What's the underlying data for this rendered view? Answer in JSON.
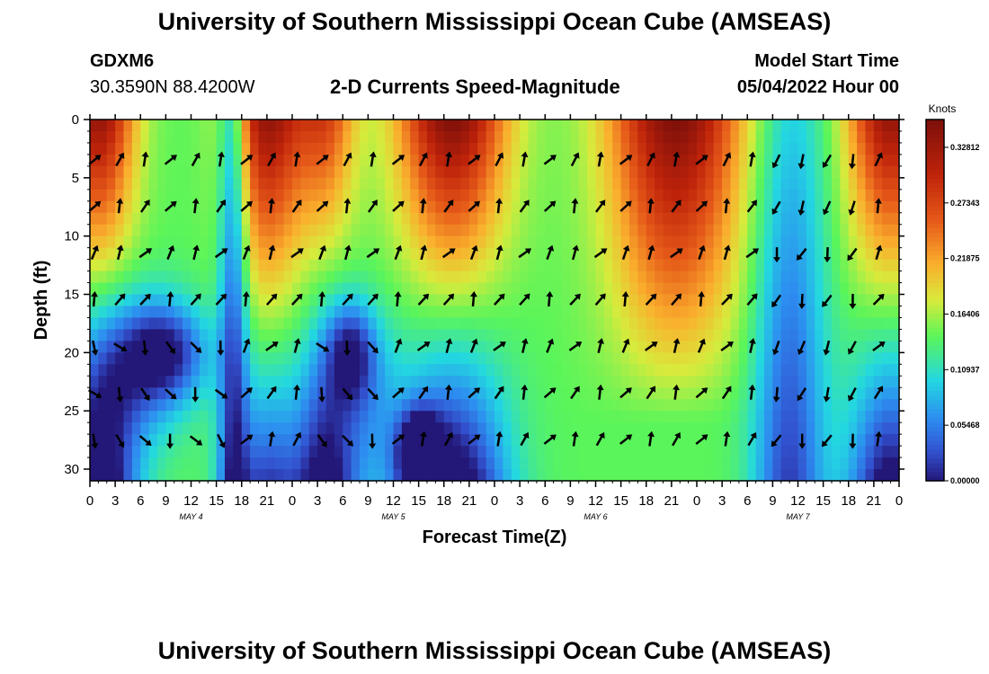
{
  "title": "University of Southern Mississippi Ocean Cube (AMSEAS)",
  "station": {
    "id": "GDXM6",
    "coords": "30.3590N  88.4200W"
  },
  "subtitle": "2-D Currents Speed-Magnitude",
  "model_start": {
    "label": "Model Start Time",
    "value": "05/04/2022 Hour 00"
  },
  "footer_title": "University of Southern Mississippi Ocean Cube (AMSEAS)",
  "chart_data": {
    "type": "heatmap",
    "title": "2-D Currents Speed-Magnitude",
    "xlabel": "Forecast Time(Z)",
    "ylabel": "Depth (ft)",
    "x_range_hours": [
      0,
      96
    ],
    "y_range_ft": [
      0,
      31
    ],
    "x_ticks": [
      0,
      3,
      6,
      9,
      12,
      15,
      18,
      21,
      24,
      27,
      30,
      33,
      36,
      39,
      42,
      45,
      48,
      51,
      54,
      57,
      60,
      63,
      66,
      69,
      72,
      75,
      78,
      81,
      84,
      87,
      90,
      93,
      96
    ],
    "x_tick_labels": [
      "0",
      "3",
      "6",
      "9",
      "12",
      "15",
      "18",
      "21",
      "0",
      "3",
      "6",
      "9",
      "12",
      "15",
      "18",
      "21",
      "0",
      "3",
      "6",
      "9",
      "12",
      "15",
      "18",
      "21",
      "0",
      "3",
      "6",
      "9",
      "12",
      "15",
      "18",
      "21",
      "0"
    ],
    "y_ticks": [
      0,
      5,
      10,
      15,
      20,
      25,
      30
    ],
    "y_tick_labels": [
      "0",
      "5",
      "10",
      "15",
      "20",
      "25",
      "30"
    ],
    "date_labels": [
      {
        "text": "MAY 4",
        "hour": 12
      },
      {
        "text": "MAY 5",
        "hour": 36
      },
      {
        "text": "MAY 6",
        "hour": 60
      },
      {
        "text": "MAY 7",
        "hour": 84
      }
    ],
    "colorbar": {
      "unit": "Knots",
      "range": [
        0.0,
        0.3555
      ],
      "tick_values": [
        0.0,
        0.05468,
        0.10937,
        0.16406,
        0.21875,
        0.27343,
        0.32812
      ],
      "tick_labels": [
        "0.00000",
        "0.05468",
        "0.10937",
        "0.16406",
        "0.21875",
        "0.27343",
        "0.32812"
      ]
    },
    "vector_depths_ft": [
      3.5,
      7.5,
      11.5,
      15.5,
      19.5,
      23.5,
      27.5
    ],
    "vector_hours": [
      0,
      3,
      6,
      9,
      12,
      15,
      18,
      21,
      24,
      27,
      30,
      33,
      36,
      39,
      42,
      45,
      48,
      51,
      54,
      57,
      60,
      63,
      66,
      69,
      72,
      75,
      78,
      81,
      84,
      87,
      90,
      93
    ]
  }
}
